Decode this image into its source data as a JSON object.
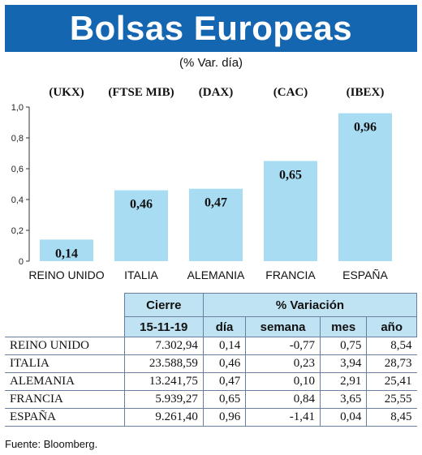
{
  "header": {
    "title": "Bolsas Europeas",
    "subtitle": "(% Var. día)"
  },
  "colors": {
    "title_bg": "#1566b1",
    "bar": "#a7dcf2",
    "table_header_bg": "#bfe3f3"
  },
  "chart_data": {
    "type": "bar",
    "title": "Bolsas Europeas",
    "subtitle": "(% Var. día)",
    "categories": [
      "REINO UNIDO",
      "ITALIA",
      "ALEMANIA",
      "FRANCIA",
      "ESPAÑA"
    ],
    "index_labels": [
      "(UKX)",
      "(FTSE MIB)",
      "(DAX)",
      "(CAC)",
      "(IBEX)"
    ],
    "values": [
      0.14,
      0.46,
      0.47,
      0.65,
      0.96
    ],
    "value_labels": [
      "0,14",
      "0,46",
      "0,47",
      "0,65",
      "0,96"
    ],
    "yticks": [
      0,
      0.2,
      0.4,
      0.6,
      0.8,
      1.0
    ],
    "ytick_labels": [
      "0",
      "0,2",
      "0,4",
      "0,6",
      "0,8",
      "1,0"
    ],
    "ylim": [
      0,
      1.0
    ],
    "grid": false,
    "legend": "none"
  },
  "table": {
    "header_cierre": "Cierre",
    "header_variacion": "% Variación",
    "date": "15-11-19",
    "col_dia": "día",
    "col_semana": "semana",
    "col_mes": "mes",
    "col_anio": "año",
    "rows": [
      {
        "name": "REINO UNIDO",
        "cierre": "7.302,94",
        "dia": "0,14",
        "semana": "-0,77",
        "mes": "0,75",
        "anio": "8,54"
      },
      {
        "name": "ITALIA",
        "cierre": "23.588,59",
        "dia": "0,46",
        "semana": "0,23",
        "mes": "3,94",
        "anio": "28,73"
      },
      {
        "name": "ALEMANIA",
        "cierre": "13.241,75",
        "dia": "0,47",
        "semana": "0,10",
        "mes": "2,91",
        "anio": "25,41"
      },
      {
        "name": "FRANCIA",
        "cierre": "5.939,27",
        "dia": "0,65",
        "semana": "0,84",
        "mes": "3,65",
        "anio": "25,55"
      },
      {
        "name": "ESPAÑA",
        "cierre": "9.261,40",
        "dia": "0,96",
        "semana": "-1,41",
        "mes": "0,04",
        "anio": "8,45"
      }
    ]
  },
  "footer": {
    "source": "Fuente: Bloomberg."
  }
}
